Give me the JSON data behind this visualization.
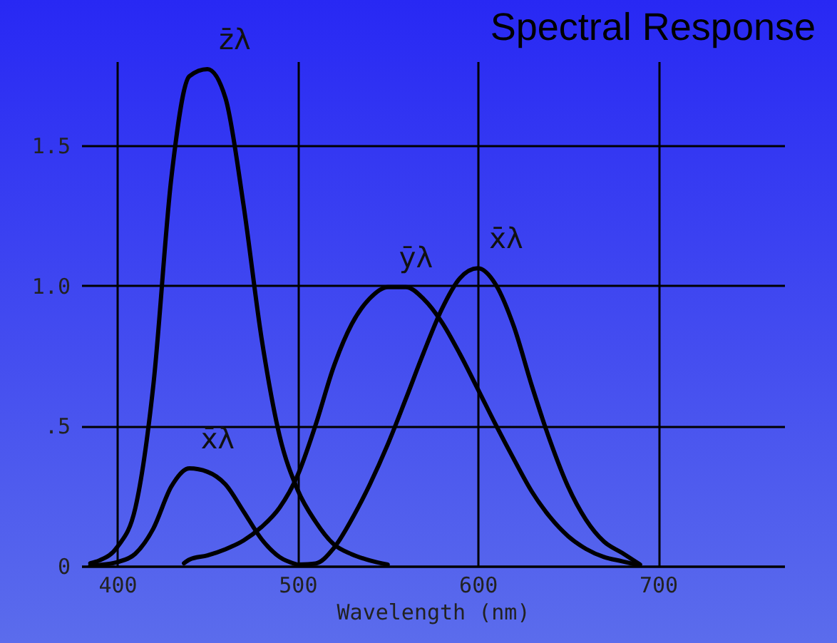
{
  "chart_data": {
    "type": "line",
    "title": "Spectral Response",
    "xlabel": "Wavelength (nm)",
    "xlim": [
      380,
      770
    ],
    "xticks": [
      400,
      500,
      600,
      700
    ],
    "ylim": [
      0,
      1.8
    ],
    "yticks": [
      0,
      {
        "value": 0.5,
        "label": ".5"
      },
      {
        "value": 1,
        "label": "1.0"
      },
      1.5
    ],
    "grid": true,
    "marker": "none",
    "line_style": "solid",
    "series": [
      {
        "name": "z̄λ",
        "color": "#000000",
        "x": [
          385,
          390,
          400,
          410,
          420,
          430,
          440,
          450,
          460,
          470,
          480,
          490,
          500,
          510,
          520,
          530,
          540,
          550
        ],
        "values": [
          0.01,
          0.02,
          0.068,
          0.207,
          0.646,
          1.386,
          1.747,
          1.772,
          1.669,
          1.288,
          0.813,
          0.465,
          0.272,
          0.158,
          0.078,
          0.042,
          0.02,
          0.005
        ]
      },
      {
        "name": "x̄λ",
        "color": "#000000",
        "x": [
          385,
          390,
          400,
          410,
          420,
          430,
          440,
          450,
          460,
          470,
          480,
          490,
          500
        ],
        "values": [
          0.002,
          0.004,
          0.014,
          0.044,
          0.134,
          0.284,
          0.348,
          0.336,
          0.291,
          0.195,
          0.096,
          0.032,
          0.005
        ]
      },
      {
        "name": "ȳλ",
        "color": "#000000",
        "x": [
          437,
          440,
          450,
          460,
          470,
          480,
          490,
          500,
          510,
          520,
          530,
          540,
          550,
          560,
          570,
          580,
          590,
          600,
          610,
          620,
          630,
          640,
          650,
          660,
          670,
          680,
          688
        ],
        "values": [
          0.01,
          0.023,
          0.038,
          0.06,
          0.091,
          0.139,
          0.208,
          0.323,
          0.503,
          0.71,
          0.862,
          0.954,
          0.995,
          0.995,
          0.952,
          0.87,
          0.757,
          0.631,
          0.503,
          0.381,
          0.265,
          0.175,
          0.107,
          0.061,
          0.032,
          0.017,
          0.005
        ]
      },
      {
        "name": "x̄λ",
        "color": "#000000",
        "x": [
          500,
          510,
          520,
          530,
          540,
          550,
          560,
          570,
          580,
          590,
          600,
          610,
          620,
          630,
          640,
          650,
          660,
          670,
          680,
          690
        ],
        "values": [
          0.005,
          0.009,
          0.063,
          0.166,
          0.29,
          0.433,
          0.595,
          0.762,
          0.916,
          1.026,
          1.062,
          1.003,
          0.854,
          0.642,
          0.448,
          0.284,
          0.165,
          0.087,
          0.047,
          0.005
        ]
      }
    ]
  }
}
